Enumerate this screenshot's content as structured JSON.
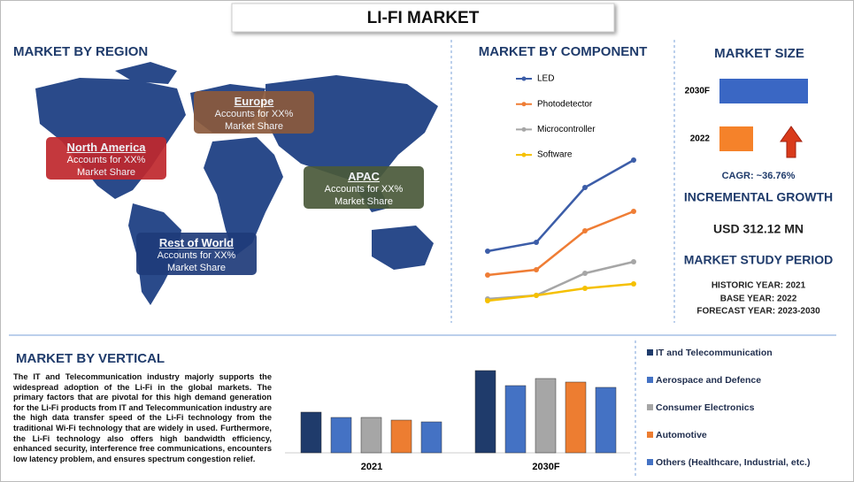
{
  "title": "LI-FI MARKET",
  "region": {
    "heading": "MARKET BY REGION",
    "items": [
      {
        "name": "North America",
        "text": "Accounts for XX% Market Share"
      },
      {
        "name": "Europe",
        "text": "Accounts for XX% Market Share"
      },
      {
        "name": "APAC",
        "text": "Accounts for XX% Market Share"
      },
      {
        "name": "Rest of World",
        "text": "Accounts for XX% Market Share"
      }
    ]
  },
  "chart_data": [
    {
      "type": "line",
      "title": "MARKET BY COMPONENT",
      "categories": [
        null,
        null,
        null,
        null
      ],
      "series": [
        {
          "name": "LED",
          "color": "#3c5da8",
          "values": [
            38,
            43,
            74,
            89.5
          ]
        },
        {
          "name": "Photodetector",
          "color": "#ef7d35",
          "values": [
            24.5,
            27.5,
            49.5,
            60.5
          ]
        },
        {
          "name": "Microcontroller",
          "color": "#a6a6a6",
          "values": [
            11,
            13,
            25.5,
            32
          ]
        },
        {
          "name": "Software",
          "color": "#f5c000",
          "values": [
            10,
            13,
            17,
            19.5
          ]
        }
      ],
      "ylim": [
        0,
        100
      ]
    },
    {
      "type": "hbar",
      "title": "MARKET SIZE",
      "categories": [
        "2030F",
        "2022"
      ],
      "values": [
        100,
        38
      ],
      "colors": [
        "#3a67c4",
        "#f5822a"
      ],
      "xlim": [
        0,
        100
      ]
    },
    {
      "type": "bar",
      "title": "MARKET BY VERTICAL",
      "categories": [
        "2021",
        "2030F"
      ],
      "series": [
        {
          "name": "IT and Telecommunication",
          "color": "#1f3b6b",
          "values": [
            46,
            93
          ]
        },
        {
          "name": "Aerospace and Defence",
          "color": "#4472c4",
          "values": [
            40,
            76
          ]
        },
        {
          "name": "Consumer Electronics",
          "color": "#a6a6a6",
          "values": [
            40,
            84
          ]
        },
        {
          "name": "Automotive",
          "color": "#ed7d31",
          "values": [
            37,
            80
          ]
        },
        {
          "name": "Others (Healthcare, Industrial, etc.)",
          "color": "#4472c4",
          "values": [
            35,
            74
          ]
        }
      ],
      "ylim": [
        0,
        100
      ]
    }
  ],
  "market_size": {
    "cagr": "CAGR:  ~36.76%",
    "incremental_heading": "INCREMENTAL GROWTH",
    "incremental_value": "USD 312.12 MN",
    "study_heading": "MARKET STUDY PERIOD",
    "historic": "HISTORIC YEAR: 2021",
    "base": "BASE YEAR: 2022",
    "forecast": "FORECAST YEAR: 2023-2030"
  },
  "vertical_text": "The IT and Telecommunication industry majorly supports the widespread adoption of the Li-Fi in the global markets. The primary factors that are pivotal for this high demand generation for the Li-Fi products from IT and Telecommunication industry are the high data transfer speed of the Li-Fi technology from the traditional Wi-Fi technology that are widely in used. Furthermore, the Li-Fi technology also offers high bandwidth efficiency, enhanced security, interference free communications, encounters low latency problem, and ensures spectrum congestion relief."
}
